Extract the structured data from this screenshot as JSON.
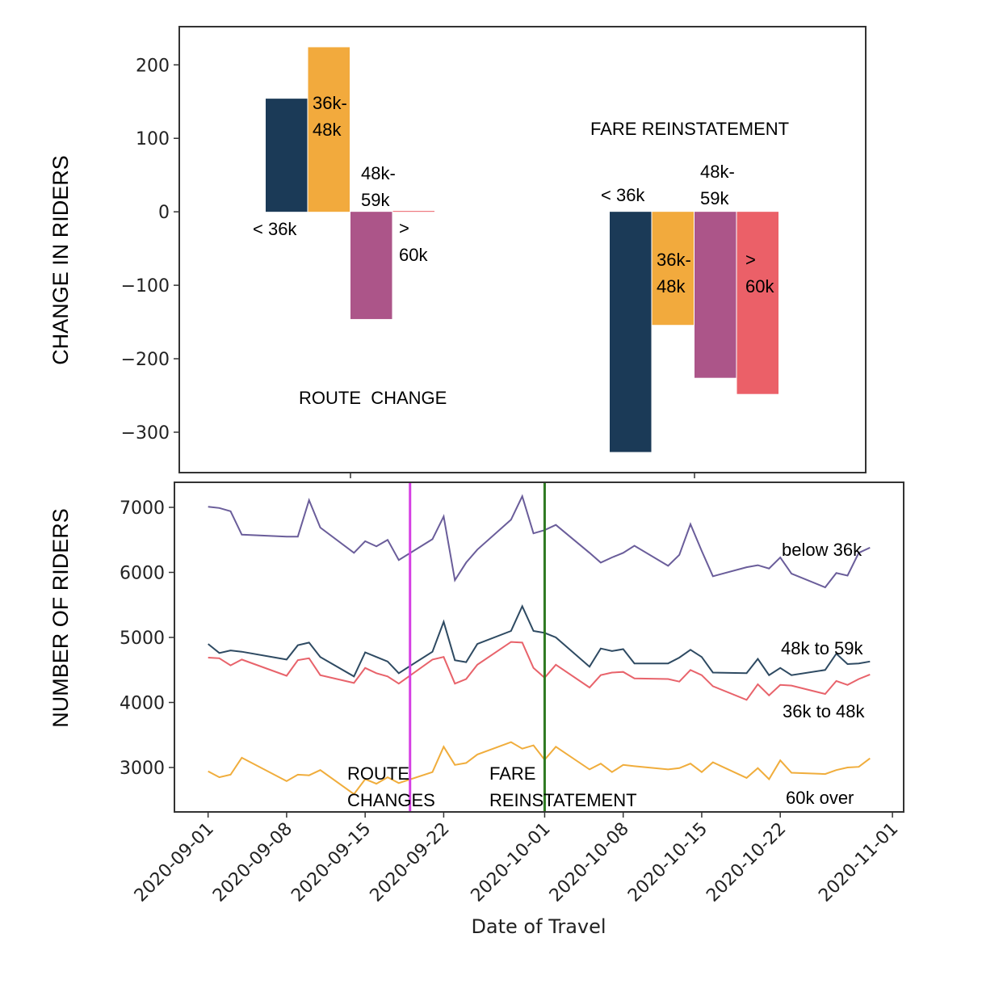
{
  "chart_data": [
    {
      "type": "bar",
      "ylabel": "CHANGE IN RIDERS",
      "categories": [
        "ROUTE  CHANGE",
        "FARE REINSTATEMENT"
      ],
      "series": [
        {
          "name": "< 36k",
          "color": "#1b3a57",
          "values": [
            154,
            -327
          ]
        },
        {
          "name": "36k-48k",
          "color": "#f2aa3d",
          "values": [
            224,
            -154
          ]
        },
        {
          "name": "48k-59k",
          "color": "#ac5589",
          "values": [
            -146,
            -226
          ]
        },
        {
          "name": "> 60k",
          "color": "#eb6068",
          "values": [
            1,
            -248
          ]
        }
      ],
      "ylim": [
        -355,
        252
      ],
      "yticks": [
        {
          "value": -300,
          "label": "−300"
        },
        {
          "value": -200,
          "label": "−200"
        },
        {
          "value": -100,
          "label": "−100"
        },
        0,
        100,
        200
      ]
    },
    {
      "type": "line",
      "ylabel": "NUMBER OF RIDERS",
      "xlabel": "Date of Travel",
      "x": [
        "2020-09-01",
        "2020-09-02",
        "2020-09-03",
        "2020-09-04",
        "2020-09-08",
        "2020-09-09",
        "2020-09-10",
        "2020-09-11",
        "2020-09-14",
        "2020-09-15",
        "2020-09-16",
        "2020-09-17",
        "2020-09-18",
        "2020-09-21",
        "2020-09-22",
        "2020-09-23",
        "2020-09-24",
        "2020-09-25",
        "2020-09-28",
        "2020-09-29",
        "2020-09-30",
        "2020-10-01",
        "2020-10-02",
        "2020-10-05",
        "2020-10-06",
        "2020-10-07",
        "2020-10-08",
        "2020-10-09",
        "2020-10-12",
        "2020-10-13",
        "2020-10-14",
        "2020-10-15",
        "2020-10-16",
        "2020-10-19",
        "2020-10-20",
        "2020-10-21",
        "2020-10-22",
        "2020-10-23",
        "2020-10-26",
        "2020-10-27",
        "2020-10-28",
        "2020-10-29",
        "2020-10-30"
      ],
      "series": [
        {
          "name": "below 36k",
          "color": "#6a5d9a",
          "values": [
            7010,
            6990,
            6940,
            6580,
            6550,
            6550,
            7110,
            6690,
            6300,
            6480,
            6400,
            6500,
            6190,
            6510,
            6860,
            5880,
            6150,
            6350,
            6810,
            7170,
            6600,
            6650,
            6730,
            6300,
            6150,
            6230,
            6300,
            6410,
            6100,
            6270,
            6740,
            6330,
            5940,
            6080,
            6110,
            6060,
            6230,
            5980,
            5770,
            5990,
            5950,
            6300,
            6380
          ]
        },
        {
          "name": "48k to 59k",
          "color": "#2e4a62",
          "values": [
            4900,
            4760,
            4800,
            4780,
            4660,
            4880,
            4920,
            4700,
            4400,
            4770,
            4700,
            4630,
            4450,
            4780,
            5240,
            4650,
            4620,
            4900,
            5100,
            5480,
            5100,
            5070,
            5000,
            4550,
            4830,
            4790,
            4820,
            4600,
            4600,
            4690,
            4810,
            4700,
            4460,
            4450,
            4670,
            4420,
            4530,
            4420,
            4500,
            4750,
            4590,
            4600,
            4630
          ]
        },
        {
          "name": "36k to 48k",
          "color": "#e8636b",
          "values": [
            4690,
            4680,
            4570,
            4660,
            4410,
            4650,
            4680,
            4420,
            4300,
            4530,
            4450,
            4400,
            4290,
            4660,
            4700,
            4290,
            4360,
            4580,
            4930,
            4920,
            4530,
            4380,
            4580,
            4230,
            4420,
            4460,
            4470,
            4370,
            4360,
            4320,
            4500,
            4420,
            4250,
            4040,
            4280,
            4110,
            4270,
            4260,
            4130,
            4330,
            4270,
            4360,
            4430
          ]
        },
        {
          "name": "60k over",
          "color": "#f0ad3c",
          "values": [
            2940,
            2850,
            2890,
            3150,
            2790,
            2890,
            2880,
            2960,
            2590,
            2820,
            2750,
            2850,
            2760,
            2930,
            3320,
            3040,
            3070,
            3200,
            3390,
            3290,
            3340,
            3120,
            3320,
            2970,
            3060,
            2930,
            3040,
            3020,
            2970,
            2990,
            3060,
            2930,
            3080,
            2840,
            2990,
            2820,
            3110,
            2920,
            2900,
            2960,
            3000,
            3010,
            3140
          ]
        }
      ],
      "annotations": [
        {
          "text": "ROUTE CHANGES",
          "x": "2020-09-19",
          "color": "#d63fe3"
        },
        {
          "text": "FARE REINSTATEMENT",
          "x": "2020-10-01",
          "color": "#2f7a22"
        }
      ],
      "xlim": [
        "2020-08-29",
        "2020-11-02"
      ],
      "xticks": [
        "2020-09-01",
        "2020-09-08",
        "2020-09-15",
        "2020-09-22",
        "2020-10-01",
        "2020-10-08",
        "2020-10-15",
        "2020-10-22",
        "2020-11-01"
      ],
      "ylim": [
        2317,
        7385
      ],
      "yticks": [
        3000,
        4000,
        5000,
        6000,
        7000
      ]
    }
  ]
}
